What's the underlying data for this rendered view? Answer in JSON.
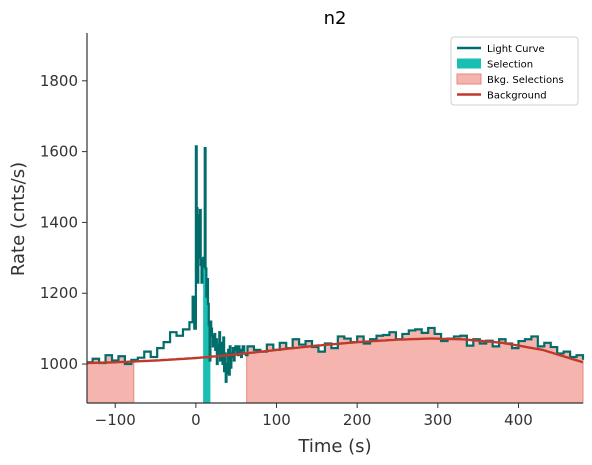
{
  "chart_data": {
    "type": "line",
    "title": "n2",
    "xlabel": "Time (s)",
    "ylabel": "Rate (cnts/s)",
    "xlim": [
      -135,
      480
    ],
    "ylim": [
      890,
      1935
    ],
    "xticks": [
      -100,
      0,
      100,
      200,
      300,
      400
    ],
    "yticks": [
      1000,
      1200,
      1400,
      1600,
      1800
    ],
    "xtick_labels": [
      "−100",
      "0",
      "100",
      "200",
      "300",
      "400"
    ],
    "ytick_labels": [
      "1000",
      "1200",
      "1400",
      "1600",
      "1800"
    ],
    "grid": false,
    "legend_position": "top-right",
    "legend": [
      {
        "label": "Light Curve",
        "kind": "line",
        "color": "#006d6a"
      },
      {
        "label": "Selection",
        "kind": "patch",
        "color": "#1abfb3"
      },
      {
        "label": "Bkg. Selections",
        "kind": "patch",
        "color": "#f5b5ae"
      },
      {
        "label": "Background",
        "kind": "line",
        "color": "#c0392b"
      }
    ],
    "colors": {
      "light_curve": "#006d6a",
      "selection": "#1abfb3",
      "bkg_fill": "#f5b5ae",
      "bkg_edge": "#e8887c",
      "background": "#c0392b"
    },
    "selection_interval": [
      9,
      18
    ],
    "bkg_intervals": [
      [
        -135,
        -77
      ],
      [
        63,
        480
      ]
    ],
    "background_model": {
      "x": [
        -135,
        -100,
        -50,
        0,
        50,
        100,
        150,
        200,
        250,
        290,
        330,
        380,
        430,
        480
      ],
      "y": [
        1003,
        1005,
        1010,
        1017,
        1027,
        1040,
        1052,
        1062,
        1069,
        1072,
        1070,
        1060,
        1040,
        1005
      ]
    },
    "light_curve": {
      "x": [
        -135,
        -128,
        -120,
        -112,
        -104,
        -96,
        -88,
        -80,
        -72,
        -64,
        -56,
        -48,
        -40,
        -32,
        -24,
        -16,
        -8,
        -4,
        -2,
        0,
        1,
        2,
        3,
        4,
        5,
        6,
        7,
        8,
        9,
        10,
        11,
        12,
        13,
        14,
        15,
        16,
        17,
        18,
        19,
        20,
        21,
        22,
        23,
        24,
        25,
        26,
        27,
        28,
        29,
        30,
        31,
        32,
        33,
        34,
        35,
        36,
        37,
        38,
        39,
        40,
        41,
        42,
        43,
        44,
        45,
        46,
        47,
        48,
        49,
        50,
        51,
        52,
        53,
        54,
        55,
        56,
        57,
        58,
        60,
        62,
        64,
        72,
        80,
        88,
        96,
        104,
        112,
        120,
        128,
        136,
        144,
        152,
        160,
        168,
        176,
        184,
        192,
        200,
        208,
        216,
        224,
        232,
        240,
        248,
        256,
        264,
        272,
        280,
        288,
        296,
        304,
        312,
        320,
        328,
        336,
        344,
        352,
        360,
        368,
        376,
        384,
        392,
        400,
        408,
        416,
        424,
        432,
        440,
        448,
        456,
        464,
        472,
        480
      ],
      "y": [
        1005,
        1015,
        1003,
        1025,
        1010,
        1022,
        1000,
        1012,
        1018,
        1035,
        1020,
        1045,
        1062,
        1090,
        1080,
        1098,
        1118,
        1190,
        1100,
        1615,
        1440,
        1230,
        1300,
        1420,
        1435,
        1280,
        1230,
        1295,
        1300,
        1275,
        1610,
        1270,
        1190,
        1240,
        1170,
        1110,
        1010,
        1120,
        1100,
        1080,
        1050,
        1060,
        1085,
        1040,
        1070,
        1000,
        1030,
        1055,
        1090,
        1010,
        1020,
        1060,
        1000,
        1075,
        980,
        1030,
        950,
        1000,
        975,
        1040,
        970,
        1050,
        990,
        1020,
        1030,
        1045,
        1010,
        1040,
        1050,
        1050,
        1030,
        1025,
        1050,
        1030,
        1040,
        1020,
        1040,
        1050,
        1030,
        1025,
        1050,
        1040,
        1035,
        1055,
        1040,
        1060,
        1045,
        1070,
        1055,
        1065,
        1048,
        1035,
        1058,
        1045,
        1078,
        1072,
        1062,
        1078,
        1058,
        1070,
        1080,
        1082,
        1090,
        1070,
        1085,
        1095,
        1098,
        1088,
        1102,
        1085,
        1065,
        1072,
        1078,
        1080,
        1052,
        1070,
        1058,
        1066,
        1050,
        1070,
        1058,
        1045,
        1065,
        1070,
        1078,
        1050,
        1060,
        1048,
        1030,
        1035,
        1020,
        1025,
        1012
      ]
    }
  }
}
